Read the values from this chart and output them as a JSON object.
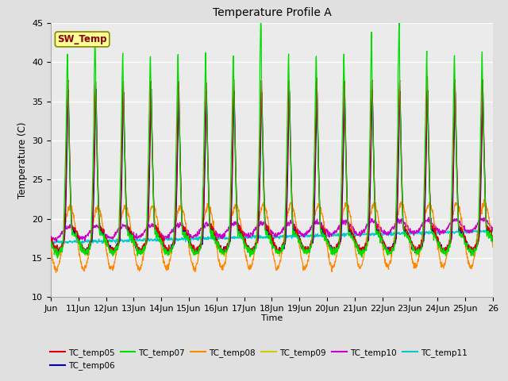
{
  "title": "Temperature Profile A",
  "xlabel": "Time",
  "ylabel": "Temperature (C)",
  "ylim": [
    10,
    45
  ],
  "x_tick_labels": [
    "Jun",
    "11Jun",
    "12Jun",
    "13Jun",
    "14Jun",
    "15Jun",
    "16Jun",
    "17Jun",
    "18Jun",
    "19Jun",
    "20Jun",
    "21Jun",
    "22Jun",
    "23Jun",
    "24Jun",
    "25Jun",
    "26"
  ],
  "background_color": "#e0e0e0",
  "plot_bg_color": "#ebebeb",
  "sw_temp_label": "SW_Temp",
  "sw_temp_color": "#8B0000",
  "sw_temp_bg": "#ffff99",
  "legend_entries": [
    {
      "label": "TC_temp05",
      "color": "#dd0000"
    },
    {
      "label": "TC_temp06",
      "color": "#0000cc"
    },
    {
      "label": "TC_temp07",
      "color": "#00dd00"
    },
    {
      "label": "TC_temp08",
      "color": "#ff8800"
    },
    {
      "label": "TC_temp09",
      "color": "#cccc00"
    },
    {
      "label": "TC_temp10",
      "color": "#cc00cc"
    },
    {
      "label": "TC_temp11",
      "color": "#00cccc"
    }
  ],
  "grid_color": "#ffffff",
  "grid_linewidth": 1.0,
  "yticks": [
    10,
    15,
    20,
    25,
    30,
    35,
    40,
    45
  ]
}
